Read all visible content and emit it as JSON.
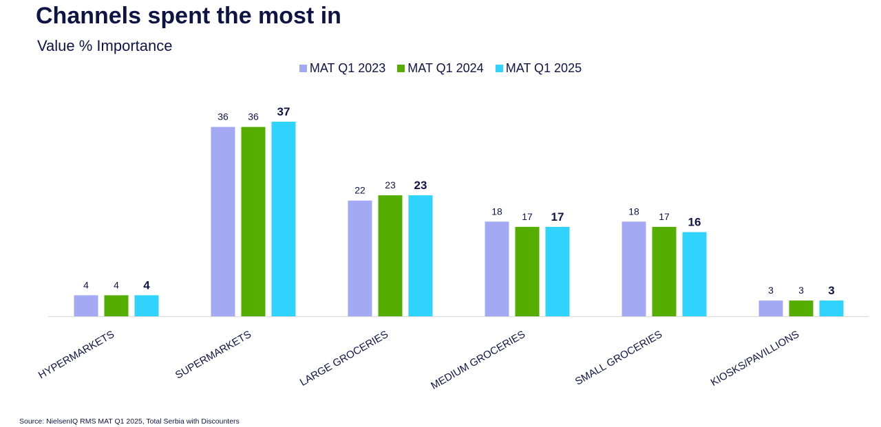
{
  "page": {
    "title": "Channels spent the most in",
    "subtitle": "Value % Importance",
    "source": "Source: NielsenIQ RMS MAT Q1 2025, Total Serbia with Discounters"
  },
  "chart_data": {
    "type": "bar",
    "title": "Channels spent the most in",
    "subtitle": "Value % Importance",
    "categories": [
      "HYPERMARKETS",
      "SUPERMARKETS",
      "LARGE GROCERIES",
      "MEDIUM GROCERIES",
      "SMALL GROCERIES",
      "KIOSKS/PAVILLIONS"
    ],
    "series": [
      {
        "name": "MAT Q1 2023",
        "color": "#a4a9f3",
        "values": [
          4,
          36,
          22,
          18,
          18,
          3
        ]
      },
      {
        "name": "MAT Q1 2024",
        "color": "#55ad00",
        "values": [
          4,
          36,
          23,
          17,
          17,
          3
        ]
      },
      {
        "name": "MAT Q1 2025",
        "color": "#30d3fb",
        "values": [
          4,
          37,
          23,
          17,
          16,
          3
        ]
      }
    ],
    "highlighted_series": "MAT Q1 2025",
    "ylim": [
      0,
      40
    ],
    "grid": false,
    "legend_position": "top-center",
    "data_labels": true
  }
}
